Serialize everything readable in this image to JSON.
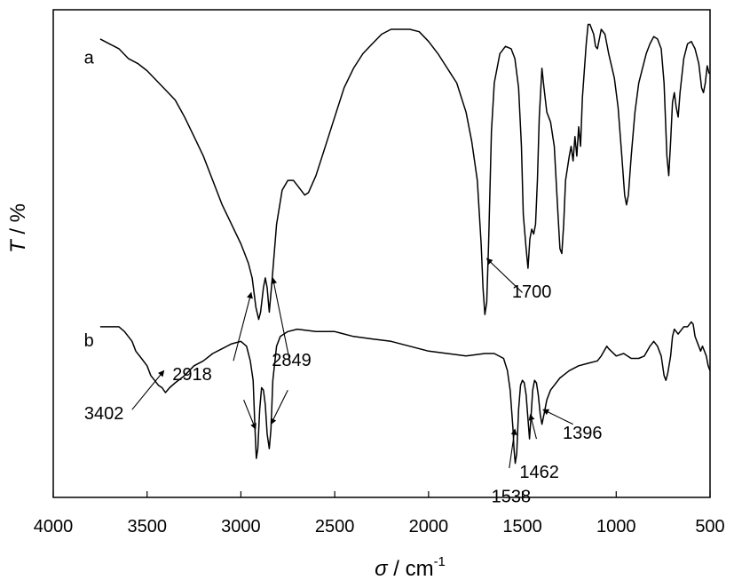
{
  "chart_data": {
    "type": "line",
    "x_axis": {
      "label_symbol": "σ",
      "label_sep": " / cm",
      "label_sup": "-1",
      "xlim": [
        4000,
        500
      ],
      "ticks": [
        "4000",
        "3500",
        "3000",
        "2500",
        "2000",
        "1500",
        "1000",
        "500"
      ],
      "tick_values": [
        4000,
        3500,
        3000,
        2500,
        2000,
        1500,
        1000,
        500
      ]
    },
    "y_axis": {
      "label_symbol": "T",
      "label_rest": " / %",
      "ylim": [
        0,
        100
      ],
      "ticks": []
    },
    "grid": false,
    "series": [
      {
        "name": "a",
        "points": [
          [
            3750,
            94
          ],
          [
            3700,
            93
          ],
          [
            3650,
            92
          ],
          [
            3600,
            90
          ],
          [
            3550,
            89
          ],
          [
            3500,
            87.5
          ],
          [
            3450,
            85.5
          ],
          [
            3400,
            83.5
          ],
          [
            3350,
            81.5
          ],
          [
            3300,
            78
          ],
          [
            3250,
            74
          ],
          [
            3200,
            70
          ],
          [
            3150,
            65
          ],
          [
            3100,
            60
          ],
          [
            3050,
            56
          ],
          [
            3000,
            52
          ],
          [
            2980,
            50
          ],
          [
            2960,
            48
          ],
          [
            2940,
            45
          ],
          [
            2920,
            39
          ],
          [
            2905,
            36.5
          ],
          [
            2895,
            38
          ],
          [
            2880,
            43
          ],
          [
            2870,
            45
          ],
          [
            2860,
            43
          ],
          [
            2849,
            38
          ],
          [
            2835,
            44
          ],
          [
            2810,
            56
          ],
          [
            2780,
            63
          ],
          [
            2750,
            65
          ],
          [
            2720,
            65
          ],
          [
            2700,
            64
          ],
          [
            2680,
            63
          ],
          [
            2660,
            62
          ],
          [
            2640,
            62.5
          ],
          [
            2600,
            66
          ],
          [
            2550,
            72
          ],
          [
            2500,
            78
          ],
          [
            2450,
            84
          ],
          [
            2400,
            88
          ],
          [
            2350,
            91
          ],
          [
            2300,
            93
          ],
          [
            2250,
            95
          ],
          [
            2200,
            96
          ],
          [
            2150,
            96
          ],
          [
            2100,
            96
          ],
          [
            2050,
            95.5
          ],
          [
            2000,
            93.5
          ],
          [
            1950,
            91
          ],
          [
            1900,
            88
          ],
          [
            1850,
            85
          ],
          [
            1800,
            79
          ],
          [
            1770,
            73
          ],
          [
            1740,
            65
          ],
          [
            1720,
            52
          ],
          [
            1710,
            43
          ],
          [
            1700,
            37.5
          ],
          [
            1690,
            40
          ],
          [
            1680,
            52
          ],
          [
            1665,
            75
          ],
          [
            1650,
            85
          ],
          [
            1620,
            91
          ],
          [
            1590,
            92.5
          ],
          [
            1560,
            92
          ],
          [
            1540,
            90
          ],
          [
            1520,
            84
          ],
          [
            1505,
            72
          ],
          [
            1495,
            58
          ],
          [
            1480,
            51
          ],
          [
            1470,
            47
          ],
          [
            1460,
            53
          ],
          [
            1450,
            55
          ],
          [
            1440,
            54
          ],
          [
            1430,
            56
          ],
          [
            1420,
            65
          ],
          [
            1410,
            78
          ],
          [
            1396,
            88
          ],
          [
            1385,
            84
          ],
          [
            1370,
            79
          ],
          [
            1350,
            77
          ],
          [
            1330,
            72
          ],
          [
            1310,
            58
          ],
          [
            1300,
            51
          ],
          [
            1290,
            50
          ],
          [
            1280,
            56
          ],
          [
            1270,
            65
          ],
          [
            1250,
            70
          ],
          [
            1240,
            72
          ],
          [
            1230,
            69
          ],
          [
            1220,
            74
          ],
          [
            1210,
            70
          ],
          [
            1200,
            76
          ],
          [
            1190,
            72
          ],
          [
            1180,
            82
          ],
          [
            1160,
            93
          ],
          [
            1150,
            97
          ],
          [
            1140,
            97
          ],
          [
            1120,
            95
          ],
          [
            1110,
            92.5
          ],
          [
            1100,
            92
          ],
          [
            1090,
            94
          ],
          [
            1080,
            96
          ],
          [
            1060,
            95
          ],
          [
            1040,
            91
          ],
          [
            1010,
            86
          ],
          [
            990,
            80
          ],
          [
            970,
            70
          ],
          [
            955,
            62
          ],
          [
            945,
            60
          ],
          [
            935,
            62
          ],
          [
            920,
            70
          ],
          [
            900,
            79
          ],
          [
            880,
            85
          ],
          [
            860,
            88
          ],
          [
            840,
            91
          ],
          [
            820,
            93
          ],
          [
            800,
            94.5
          ],
          [
            780,
            94
          ],
          [
            760,
            92
          ],
          [
            745,
            85
          ],
          [
            730,
            70
          ],
          [
            720,
            66
          ],
          [
            710,
            73
          ],
          [
            700,
            81
          ],
          [
            690,
            83
          ],
          [
            680,
            80
          ],
          [
            670,
            78
          ],
          [
            660,
            83
          ],
          [
            640,
            90
          ],
          [
            620,
            93
          ],
          [
            600,
            93.5
          ],
          [
            580,
            92
          ],
          [
            560,
            89
          ],
          [
            545,
            84
          ],
          [
            535,
            83
          ],
          [
            525,
            85
          ],
          [
            515,
            88.5
          ],
          [
            505,
            87
          ],
          [
            500,
            87
          ]
        ]
      },
      {
        "name": "b",
        "points": [
          [
            3750,
            35
          ],
          [
            3700,
            35
          ],
          [
            3650,
            35
          ],
          [
            3620,
            34
          ],
          [
            3580,
            32
          ],
          [
            3560,
            30
          ],
          [
            3530,
            28.5
          ],
          [
            3500,
            27
          ],
          [
            3480,
            25
          ],
          [
            3460,
            24
          ],
          [
            3440,
            23
          ],
          [
            3420,
            22.5
          ],
          [
            3402,
            21.5
          ],
          [
            3380,
            22.5
          ],
          [
            3350,
            23.5
          ],
          [
            3300,
            25
          ],
          [
            3250,
            27
          ],
          [
            3200,
            28
          ],
          [
            3150,
            29.5
          ],
          [
            3100,
            30.5
          ],
          [
            3050,
            31.5
          ],
          [
            3000,
            32
          ],
          [
            2970,
            31
          ],
          [
            2950,
            28
          ],
          [
            2935,
            24
          ],
          [
            2925,
            14
          ],
          [
            2918,
            8
          ],
          [
            2910,
            10
          ],
          [
            2900,
            18
          ],
          [
            2890,
            22.5
          ],
          [
            2880,
            22
          ],
          [
            2870,
            19
          ],
          [
            2860,
            13
          ],
          [
            2849,
            10
          ],
          [
            2840,
            14
          ],
          [
            2830,
            24
          ],
          [
            2810,
            31
          ],
          [
            2790,
            33
          ],
          [
            2750,
            34
          ],
          [
            2700,
            34.5
          ],
          [
            2600,
            34
          ],
          [
            2500,
            34
          ],
          [
            2400,
            33
          ],
          [
            2300,
            32.5
          ],
          [
            2200,
            32
          ],
          [
            2100,
            31
          ],
          [
            2000,
            30
          ],
          [
            1900,
            29.5
          ],
          [
            1800,
            29
          ],
          [
            1700,
            29.5
          ],
          [
            1650,
            29.5
          ],
          [
            1600,
            28.5
          ],
          [
            1580,
            26
          ],
          [
            1565,
            22
          ],
          [
            1550,
            14
          ],
          [
            1545,
            10
          ],
          [
            1538,
            7
          ],
          [
            1530,
            9
          ],
          [
            1520,
            18
          ],
          [
            1510,
            23
          ],
          [
            1500,
            24
          ],
          [
            1490,
            23.5
          ],
          [
            1480,
            21
          ],
          [
            1470,
            16
          ],
          [
            1462,
            12
          ],
          [
            1455,
            16
          ],
          [
            1445,
            22
          ],
          [
            1435,
            24
          ],
          [
            1425,
            23.5
          ],
          [
            1415,
            21
          ],
          [
            1405,
            17
          ],
          [
            1396,
            15
          ],
          [
            1385,
            17
          ],
          [
            1370,
            20
          ],
          [
            1350,
            22
          ],
          [
            1300,
            24.5
          ],
          [
            1250,
            26
          ],
          [
            1200,
            27
          ],
          [
            1150,
            27.5
          ],
          [
            1100,
            28
          ],
          [
            1080,
            29
          ],
          [
            1050,
            31
          ],
          [
            1040,
            30.5
          ],
          [
            1000,
            29
          ],
          [
            960,
            29.5
          ],
          [
            920,
            28.5
          ],
          [
            880,
            28.5
          ],
          [
            850,
            29
          ],
          [
            820,
            31
          ],
          [
            800,
            32
          ],
          [
            780,
            31
          ],
          [
            760,
            29
          ],
          [
            745,
            25
          ],
          [
            735,
            24
          ],
          [
            725,
            25.5
          ],
          [
            710,
            29
          ],
          [
            700,
            33
          ],
          [
            690,
            34.5
          ],
          [
            680,
            34
          ],
          [
            670,
            33.5
          ],
          [
            660,
            34
          ],
          [
            640,
            35
          ],
          [
            620,
            35
          ],
          [
            600,
            36
          ],
          [
            590,
            35.5
          ],
          [
            580,
            33
          ],
          [
            570,
            32
          ],
          [
            560,
            31
          ],
          [
            550,
            30
          ],
          [
            540,
            31
          ],
          [
            530,
            30
          ],
          [
            520,
            29
          ],
          [
            510,
            27
          ],
          [
            500,
            26
          ]
        ]
      }
    ],
    "curve_labels": [
      {
        "text": "a",
        "x": 3810,
        "y": 89
      },
      {
        "text": "b",
        "x": 3810,
        "y": 31
      }
    ],
    "annotations": [
      {
        "text": "1700",
        "label_x": 1450,
        "label_y": 41,
        "arrows": [
          {
            "from": [
              1500,
              42
            ],
            "to": [
              1690,
              49
            ]
          }
        ]
      },
      {
        "text": "2918",
        "label_x": 3260,
        "label_y": 24,
        "arrows": [
          {
            "from": [
              3040,
              28
            ],
            "to": [
              2945,
              42
            ]
          },
          {
            "from": [
              2985,
              20
            ],
            "to": [
              2922,
              14
            ]
          }
        ]
      },
      {
        "text": "2849",
        "label_x": 2730,
        "label_y": 27,
        "arrows": [
          {
            "from": [
              2740,
              28
            ],
            "to": [
              2830,
              45
            ]
          },
          {
            "from": [
              2750,
              22
            ],
            "to": [
              2840,
              15
            ]
          }
        ]
      },
      {
        "text": "3402",
        "label_x": 3730,
        "label_y": 16,
        "arrows": [
          {
            "from": [
              3580,
              18
            ],
            "to": [
              3410,
              26
            ]
          }
        ]
      },
      {
        "text": "1538",
        "label_x": 1560,
        "label_y": -1,
        "arrows": [
          {
            "from": [
              1570,
              6
            ],
            "to": [
              1540,
              14
            ]
          }
        ]
      },
      {
        "text": "1462",
        "label_x": 1410,
        "label_y": 4,
        "arrows": [
          {
            "from": [
              1425,
              12
            ],
            "to": [
              1458,
              17
            ]
          }
        ]
      },
      {
        "text": "1396",
        "label_x": 1180,
        "label_y": 12,
        "arrows": [
          {
            "from": [
              1230,
              15
            ],
            "to": [
              1390,
              18
            ]
          }
        ]
      }
    ]
  }
}
